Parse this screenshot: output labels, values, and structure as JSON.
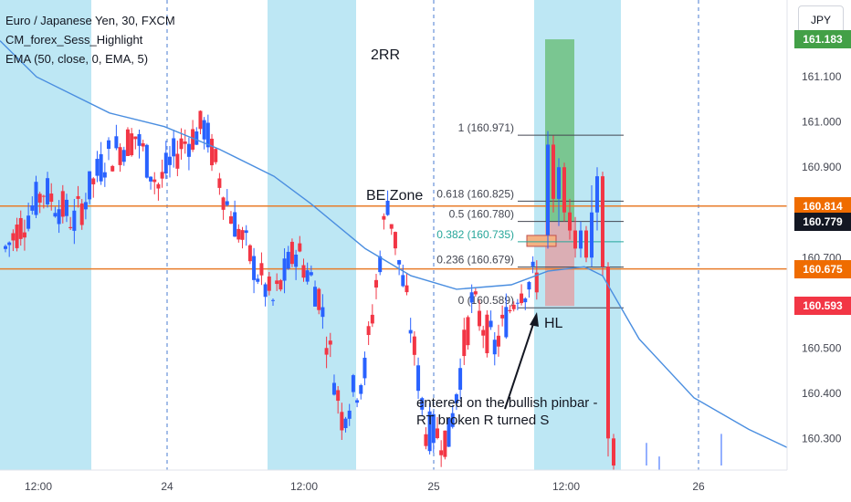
{
  "legend": {
    "title": "Euro / Japanese Yen, 30, FXCM",
    "indicator1": "CM_forex_Sess_Highlight",
    "indicator2": "EMA (50, close, 0, EMA, 5)"
  },
  "currency": "JPY",
  "annotations": {
    "rr": "2RR",
    "be_zone": "BE Zone",
    "hl": "HL",
    "note": "entered on the bullish pinbar - RT broken R turned S"
  },
  "colors": {
    "bull": "#2962ff",
    "bear": "#f23645",
    "session": "#bde7f4",
    "ema": "#4a8ee0",
    "hline": "#e87c2a",
    "profit": "#6fbf7f",
    "loss": "#e0a3a8",
    "tag_green": "#43a047",
    "tag_orange": "#ef6c00",
    "tag_black": "#131722",
    "tag_red": "#f23645"
  },
  "price_tags": [
    {
      "value": "161.183",
      "price": 161.183,
      "color": "#43a047"
    },
    {
      "value": "160.814",
      "price": 160.814,
      "color": "#ef6c00"
    },
    {
      "value": "160.779",
      "price": 160.779,
      "color": "#131722"
    },
    {
      "value": "160.675",
      "price": 160.675,
      "color": "#ef6c00"
    },
    {
      "value": "160.593",
      "price": 160.593,
      "color": "#f23645"
    }
  ],
  "chart_data": {
    "type": "candlestick",
    "y_axis": {
      "min": 160.23,
      "max": 161.27,
      "ticks": [
        "161.100",
        "161.000",
        "160.900",
        "160.700",
        "160.500",
        "160.400",
        "160.300"
      ],
      "tick_values": [
        161.1,
        161.0,
        160.9,
        160.7,
        160.5,
        160.4,
        160.3
      ]
    },
    "x_axis": {
      "labels": [
        "12:00",
        "24",
        "12:00",
        "25",
        "12:00",
        "26"
      ]
    },
    "horizontal_lines": [
      160.814,
      160.675
    ],
    "fibonacci": [
      {
        "label": "1 (160.971)",
        "price": 160.971
      },
      {
        "label": "0.618 (160.825)",
        "price": 160.825
      },
      {
        "label": "0.5 (160.780)",
        "price": 160.78
      },
      {
        "label": "0.382 (160.735)",
        "price": 160.735
      },
      {
        "label": "0.236 (160.679)",
        "price": 160.679
      },
      {
        "label": "0 (160.589)",
        "price": 160.589
      }
    ],
    "position": {
      "target": 161.183,
      "entry": 160.779,
      "stop": 160.593
    },
    "sessions": 4,
    "candle_count": 140
  }
}
